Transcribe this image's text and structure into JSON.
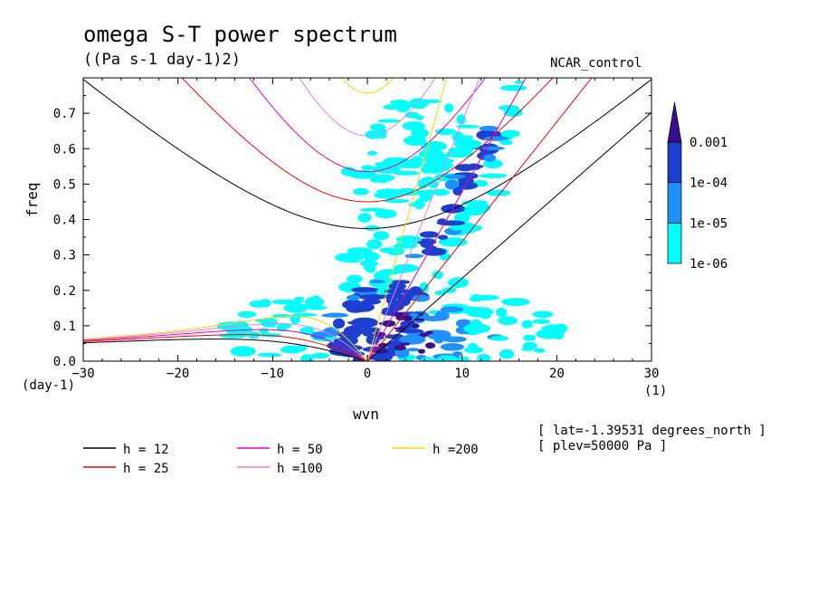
{
  "chart_data": {
    "type": "heatmap",
    "title": "omega S-T power spectrum",
    "subtitle": "((Pa s-1 day-1)2)",
    "dataset_label": "NCAR_control",
    "xlabel": "wvn",
    "ylabel": "freq",
    "x_unit": "(1)",
    "y_unit": "(day-1)",
    "xlim": [
      -30,
      30
    ],
    "ylim": [
      0,
      0.8
    ],
    "x_ticks": [
      "-30",
      "-20",
      "-10",
      "0",
      "10",
      "20",
      "30"
    ],
    "y_ticks": [
      "0.0",
      "0.1",
      "0.2",
      "0.3",
      "0.4",
      "0.5",
      "0.6",
      "0.7"
    ],
    "colorbar": {
      "levels": [
        "1e-06",
        "1e-05",
        "1e-04",
        "0.001"
      ],
      "colors": [
        "#00ffff",
        "#1e90ff",
        "#1c3fd0",
        "#3a0f8a"
      ]
    },
    "dispersion_curves": [
      {
        "label": "h = 12",
        "h": 12,
        "color": "#000000"
      },
      {
        "label": "h = 25",
        "h": 25,
        "color": "#ff0000"
      },
      {
        "label": "h = 50",
        "h": 50,
        "color": "#e000c0"
      },
      {
        "label": "h =100",
        "h": 100,
        "color": "#e080e0"
      },
      {
        "label": "h =200",
        "h": 200,
        "color": "#ffd000"
      }
    ],
    "annotations": [
      "[ lat=-1.39531 degrees_north ]",
      "[ plev=50000 Pa ]"
    ]
  }
}
